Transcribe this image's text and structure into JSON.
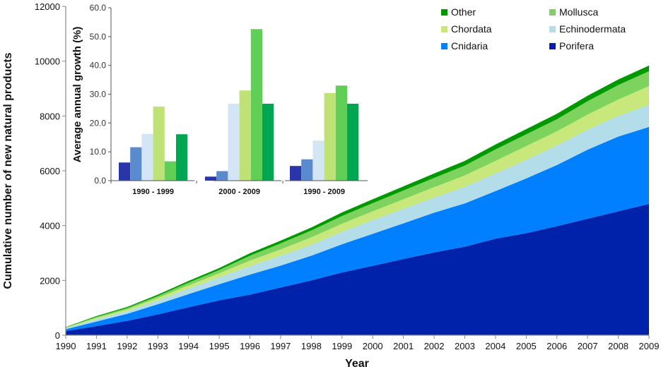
{
  "chart_data": [
    {
      "type": "area",
      "stacked": true,
      "title": "",
      "xlabel": "Year",
      "ylabel": "Cumulative number of new natural products",
      "ylim": [
        0,
        12000
      ],
      "yticks": [
        "0",
        "2000",
        "4000",
        "6000",
        "8000",
        "10000",
        "12000"
      ],
      "x": [
        "1990",
        "1991",
        "1992",
        "1993",
        "1994",
        "1995",
        "1996",
        "1997",
        "1998",
        "1999",
        "2000",
        "2001",
        "2002",
        "2003",
        "2004",
        "2005",
        "2006",
        "2007",
        "2008",
        "2009"
      ],
      "legend_position": "top-right",
      "series": [
        {
          "name": "Porifera",
          "color": "#0022aa",
          "values": [
            150,
            330,
            520,
            760,
            1020,
            1270,
            1480,
            1740,
            2000,
            2290,
            2530,
            2780,
            3020,
            3230,
            3520,
            3720,
            3980,
            4250,
            4520,
            4790
          ]
        },
        {
          "name": "Cnidaria",
          "color": "#0080ff",
          "values": [
            70,
            170,
            260,
            370,
            480,
            590,
            730,
            800,
            900,
            1030,
            1170,
            1300,
            1450,
            1580,
            1740,
            2000,
            2230,
            2520,
            2730,
            2810
          ]
        },
        {
          "name": "Echinodermata",
          "color": "#b3dde9",
          "values": [
            30,
            80,
            100,
            140,
            200,
            250,
            310,
            360,
            400,
            450,
            500,
            530,
            550,
            600,
            640,
            680,
            710,
            730,
            750,
            800
          ]
        },
        {
          "name": "Chordata",
          "color": "#c8e87c",
          "values": [
            20,
            50,
            60,
            90,
            120,
            150,
            200,
            230,
            270,
            300,
            320,
            350,
            380,
            420,
            460,
            500,
            520,
            550,
            600,
            690
          ]
        },
        {
          "name": "Mollusca",
          "color": "#7dd35e",
          "values": [
            20,
            40,
            50,
            70,
            100,
            120,
            180,
            220,
            250,
            280,
            300,
            320,
            340,
            360,
            420,
            430,
            440,
            490,
            530,
            540
          ]
        },
        {
          "name": "Other",
          "color": "#009a00",
          "values": [
            10,
            30,
            40,
            50,
            60,
            70,
            90,
            100,
            110,
            130,
            140,
            150,
            160,
            170,
            180,
            190,
            200,
            200,
            200,
            210
          ]
        }
      ],
      "legend_order": [
        "Other",
        "Mollusca",
        "Chordata",
        "Echinodermata",
        "Cnidaria",
        "Porifera"
      ]
    },
    {
      "type": "bar",
      "title": "",
      "xlabel": "",
      "ylabel": "Average annual growth (%)",
      "ylim": [
        0,
        60
      ],
      "yticks": [
        "0.0",
        "10.0",
        "20.0",
        "30.0",
        "40.0",
        "50.0",
        "60.0"
      ],
      "categories": [
        "1990 - 1999",
        "2000 - 2009",
        "1990 - 2009"
      ],
      "series": [
        {
          "name": "Porifera",
          "color": "#2a36a8",
          "values": [
            6.3,
            1.4,
            5.1
          ]
        },
        {
          "name": "Cnidaria",
          "color": "#5b8bcf",
          "values": [
            11.6,
            3.3,
            7.4
          ]
        },
        {
          "name": "Echinodermata",
          "color": "#d4e6f5",
          "values": [
            16.2,
            26.7,
            13.9
          ]
        },
        {
          "name": "Chordata",
          "color": "#bfe276",
          "values": [
            25.7,
            31.3,
            30.4
          ]
        },
        {
          "name": "Mollusca",
          "color": "#5fcf55",
          "values": [
            6.7,
            52.6,
            33.0
          ]
        },
        {
          "name": "Other",
          "color": "#00a651",
          "values": [
            16.1,
            26.7,
            26.7
          ]
        }
      ]
    }
  ]
}
